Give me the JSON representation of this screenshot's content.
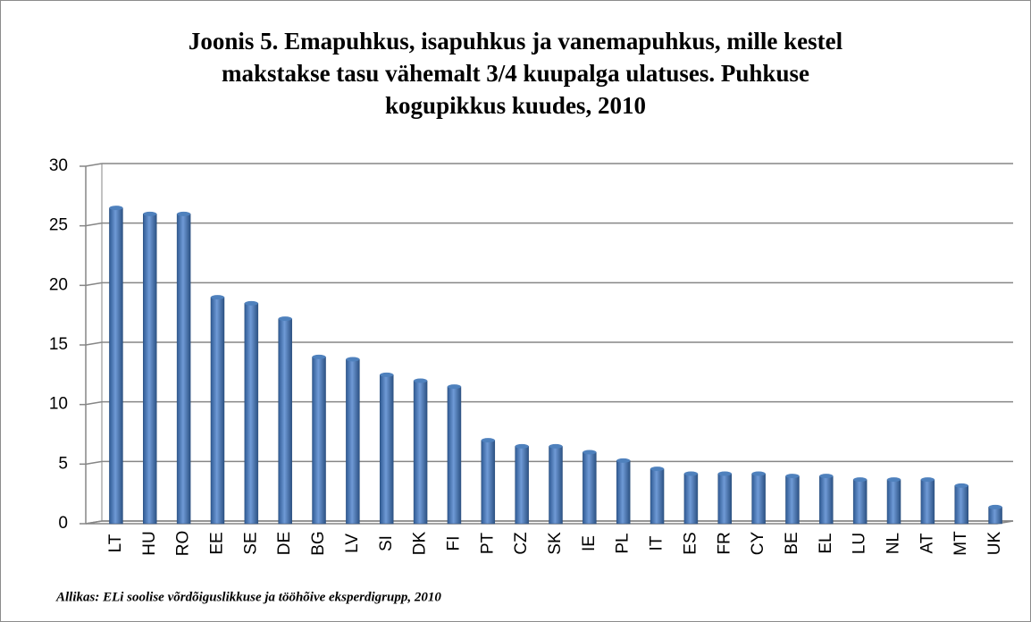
{
  "chart_data": {
    "type": "bar",
    "title": [
      "Joonis 5. Emapuhkus, isapuhkus ja  vanemapuhkus, mille kestel",
      "makstakse tasu vähemalt 3/4 kuupalga ulatuses. Puhkuse",
      "kogupikkus kuudes, 2010"
    ],
    "source": "Allikas: ELi soolise võrdõiguslikkuse ja tööhõive eksperdigrupp, 2010",
    "categories": [
      "LT",
      "HU",
      "RO",
      "EE",
      "SE",
      "DE",
      "BG",
      "LV",
      "SI",
      "DK",
      "FI",
      "PT",
      "CZ",
      "SK",
      "IE",
      "PL",
      "IT",
      "ES",
      "FR",
      "CY",
      "BE",
      "EL",
      "LU",
      "NL",
      "AT",
      "MT",
      "UK"
    ],
    "values": [
      26.5,
      26,
      26,
      19,
      18.5,
      17.2,
      14,
      13.8,
      12.5,
      12,
      11.5,
      7,
      6.5,
      6.5,
      6,
      5.3,
      4.6,
      4.2,
      4.2,
      4.2,
      4,
      4,
      3.7,
      3.7,
      3.7,
      3.2,
      1.4
    ],
    "color": "#4f81bd",
    "ylim": [
      0,
      30
    ],
    "yticks": [
      0,
      5,
      10,
      15,
      20,
      25,
      30
    ],
    "grid": true
  }
}
